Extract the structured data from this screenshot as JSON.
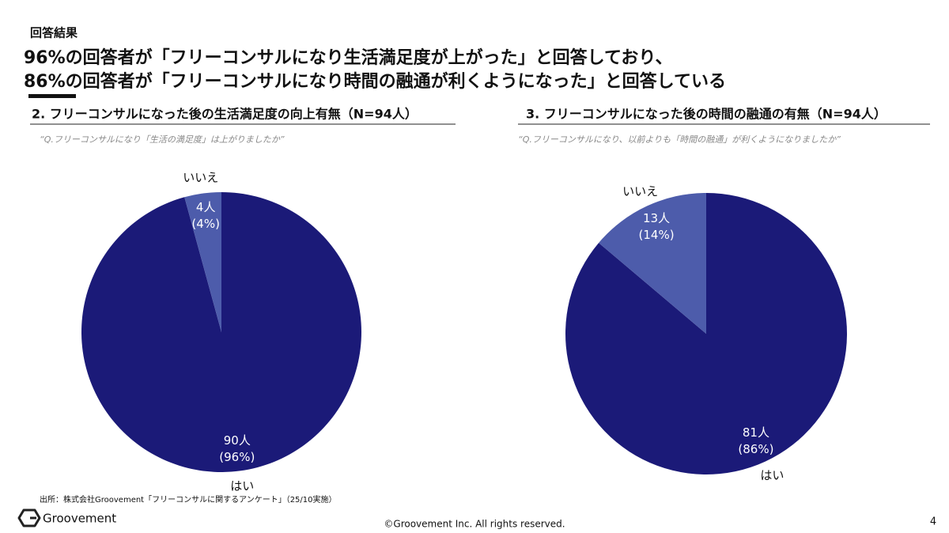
{
  "header": {
    "section": "回答結果",
    "headline": [
      "96%の回答者が「フリーコンサルになり生活満足度が上がった」と回答しており、",
      "86%の回答者が「フリーコンサルになり時間の融通が利くようになった」と回答している"
    ]
  },
  "chart_data": [
    {
      "type": "pie",
      "title": "2. フリーコンサルになった後の生活満足度の向上有無（N=94人）",
      "subtitle": "“Q.フリーコンサルになり「生活の満足度」は上がりましたか”",
      "categories": [
        "はい",
        "いいえ"
      ],
      "values": [
        90,
        4
      ],
      "value_labels": [
        "90人",
        "4人"
      ],
      "percent_labels": [
        "(96%)",
        "(4%)"
      ],
      "colors": [
        "#1b1a78",
        "#4d5cab"
      ]
    },
    {
      "type": "pie",
      "title": "3. フリーコンサルになった後の時間の融通の有無（N=94人）",
      "subtitle": "“Q.フリーコンサルになり、以前よりも「時間の融通」が利くようになりましたか”",
      "categories": [
        "はい",
        "いいえ"
      ],
      "values": [
        81,
        13
      ],
      "value_labels": [
        "81人",
        "13人"
      ],
      "percent_labels": [
        "(86%)",
        "(14%)"
      ],
      "colors": [
        "#1b1a78",
        "#4d5cab"
      ]
    }
  ],
  "footer": {
    "source": "出所：株式会社Groovement「フリーコンサルに関するアンケート」（25/10実施）",
    "logo": "Groovement",
    "copyright": "©Groovement Inc. All rights reserved.",
    "page": "4"
  }
}
